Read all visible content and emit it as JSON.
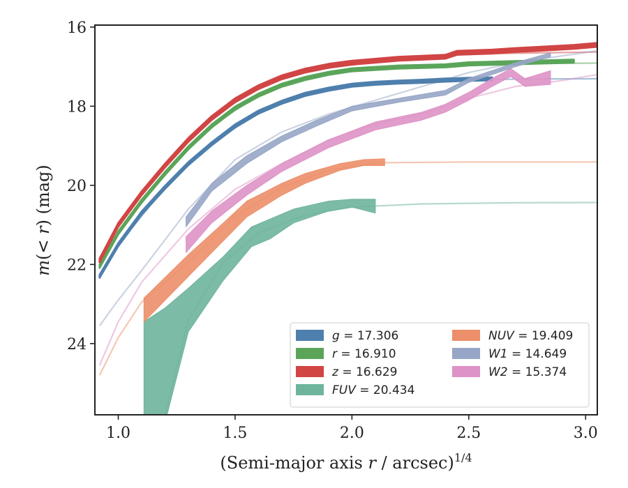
{
  "chart_data": {
    "type": "line",
    "xlabel": "(Semi-major axis r / arcsec)^1/4",
    "ylabel": "m(<r) (mag)",
    "xlim": [
      0.9,
      3.05
    ],
    "ylim": [
      25.8,
      15.95
    ],
    "y_inverted": true,
    "x_ticks": [
      "1.0",
      "1.5",
      "2.0",
      "2.5",
      "3.0"
    ],
    "y_ticks": [
      "16",
      "18",
      "20",
      "22",
      "24"
    ],
    "grid": false,
    "legend_position": "lower-right",
    "series": [
      {
        "name": "g = 17.306",
        "band": "g",
        "total_mag": 17.306,
        "color": "#4e7fad",
        "measured": [
          [
            0.92,
            22.3
          ],
          [
            1.0,
            21.5
          ],
          [
            1.1,
            20.7
          ],
          [
            1.2,
            20.05
          ],
          [
            1.3,
            19.45
          ],
          [
            1.4,
            18.95
          ],
          [
            1.5,
            18.5
          ],
          [
            1.6,
            18.15
          ],
          [
            1.7,
            17.9
          ],
          [
            1.8,
            17.7
          ],
          [
            1.9,
            17.57
          ],
          [
            2.0,
            17.47
          ],
          [
            2.1,
            17.42
          ],
          [
            2.2,
            17.39
          ],
          [
            2.3,
            17.37
          ],
          [
            2.4,
            17.34
          ],
          [
            2.5,
            17.32
          ],
          [
            2.6,
            17.31
          ]
        ],
        "model": [
          [
            0.92,
            22.3
          ],
          [
            1.0,
            21.5
          ],
          [
            1.2,
            20.05
          ],
          [
            1.4,
            18.95
          ],
          [
            1.6,
            18.15
          ],
          [
            1.8,
            17.7
          ],
          [
            2.0,
            17.47
          ],
          [
            2.2,
            17.39
          ],
          [
            2.5,
            17.33
          ],
          [
            2.8,
            17.31
          ],
          [
            3.05,
            17.306
          ]
        ],
        "band_width": 0.04
      },
      {
        "name": "r = 16.910",
        "band": "r",
        "total_mag": 16.91,
        "color": "#5aa55a",
        "measured": [
          [
            0.92,
            22.05
          ],
          [
            1.0,
            21.2
          ],
          [
            1.1,
            20.4
          ],
          [
            1.2,
            19.7
          ],
          [
            1.3,
            19.05
          ],
          [
            1.4,
            18.5
          ],
          [
            1.5,
            18.05
          ],
          [
            1.6,
            17.72
          ],
          [
            1.7,
            17.47
          ],
          [
            1.8,
            17.3
          ],
          [
            1.9,
            17.17
          ],
          [
            2.0,
            17.08
          ],
          [
            2.2,
            17.01
          ],
          [
            2.4,
            16.98
          ],
          [
            2.5,
            16.93
          ],
          [
            2.7,
            16.9
          ],
          [
            2.95,
            16.86
          ]
        ],
        "model": [
          [
            0.92,
            22.05
          ],
          [
            1.0,
            21.2
          ],
          [
            1.2,
            19.7
          ],
          [
            1.4,
            18.5
          ],
          [
            1.6,
            17.72
          ],
          [
            1.8,
            17.3
          ],
          [
            2.0,
            17.08
          ],
          [
            2.3,
            16.98
          ],
          [
            2.6,
            16.93
          ],
          [
            3.05,
            16.91
          ]
        ],
        "band_width": 0.04
      },
      {
        "name": "z = 16.629",
        "band": "z",
        "total_mag": 16.629,
        "color": "#d14545",
        "measured": [
          [
            0.92,
            21.9
          ],
          [
            1.0,
            21.0
          ],
          [
            1.1,
            20.2
          ],
          [
            1.2,
            19.5
          ],
          [
            1.3,
            18.85
          ],
          [
            1.4,
            18.3
          ],
          [
            1.5,
            17.85
          ],
          [
            1.6,
            17.52
          ],
          [
            1.7,
            17.27
          ],
          [
            1.8,
            17.1
          ],
          [
            1.9,
            16.98
          ],
          [
            2.0,
            16.9
          ],
          [
            2.2,
            16.8
          ],
          [
            2.4,
            16.75
          ],
          [
            2.45,
            16.65
          ],
          [
            2.6,
            16.62
          ],
          [
            2.7,
            16.58
          ],
          [
            2.8,
            16.55
          ],
          [
            2.95,
            16.5
          ],
          [
            3.05,
            16.45
          ]
        ],
        "model": [
          [
            0.92,
            21.9
          ],
          [
            1.0,
            21.0
          ],
          [
            1.2,
            19.5
          ],
          [
            1.4,
            18.3
          ],
          [
            1.6,
            17.52
          ],
          [
            1.8,
            17.1
          ],
          [
            2.0,
            16.9
          ],
          [
            2.3,
            16.74
          ],
          [
            2.6,
            16.67
          ],
          [
            3.05,
            16.63
          ]
        ],
        "band_width": 0.05
      },
      {
        "name": "FUV = 20.434",
        "band": "FUV",
        "total_mag": 20.434,
        "color": "#6eb49c",
        "measured_band": [
          [
            1.11,
            23.45,
            27.0
          ],
          [
            1.2,
            23.1,
            26.0
          ],
          [
            1.3,
            22.6,
            23.7
          ],
          [
            1.45,
            21.8,
            22.4
          ],
          [
            1.57,
            21.05,
            21.55
          ],
          [
            1.65,
            20.85,
            21.35
          ],
          [
            1.75,
            20.6,
            20.95
          ],
          [
            1.9,
            20.4,
            20.65
          ],
          [
            2.0,
            20.35,
            20.55
          ],
          [
            2.1,
            20.35,
            20.7
          ]
        ],
        "model": [
          [
            1.18,
            26.3
          ],
          [
            1.3,
            23.4
          ],
          [
            1.45,
            21.95
          ],
          [
            1.6,
            21.2
          ],
          [
            1.8,
            20.75
          ],
          [
            2.0,
            20.55
          ],
          [
            2.3,
            20.47
          ],
          [
            2.7,
            20.44
          ],
          [
            3.05,
            20.434
          ]
        ]
      },
      {
        "name": "NUV = 19.409",
        "band": "NUV",
        "total_mag": 19.409,
        "color": "#ec8f6a",
        "measured_band": [
          [
            1.11,
            22.85,
            23.45
          ],
          [
            1.3,
            21.75,
            22.3
          ],
          [
            1.45,
            20.95,
            21.4
          ],
          [
            1.55,
            20.4,
            20.8
          ],
          [
            1.7,
            19.95,
            20.25
          ],
          [
            1.8,
            19.7,
            19.95
          ],
          [
            1.95,
            19.45,
            19.62
          ],
          [
            2.05,
            19.35,
            19.5
          ],
          [
            2.14,
            19.33,
            19.5
          ]
        ],
        "model": [
          [
            0.92,
            24.8
          ],
          [
            1.0,
            23.85
          ],
          [
            1.1,
            22.95
          ],
          [
            1.3,
            21.95
          ],
          [
            1.5,
            20.8
          ],
          [
            1.7,
            20.05
          ],
          [
            1.9,
            19.62
          ],
          [
            2.1,
            19.43
          ],
          [
            2.5,
            19.41
          ],
          [
            3.05,
            19.409
          ]
        ]
      },
      {
        "name": "W1 = 14.649",
        "band": "W1",
        "total_mag": 14.649,
        "color": "#97a6c6",
        "measured_band": [
          [
            1.29,
            20.8,
            21.05
          ],
          [
            1.4,
            19.95,
            20.15
          ],
          [
            1.55,
            19.25,
            19.45
          ],
          [
            1.7,
            18.75,
            18.9
          ],
          [
            1.85,
            18.35,
            18.5
          ],
          [
            2.0,
            18.0,
            18.12
          ],
          [
            2.2,
            17.8,
            17.9
          ],
          [
            2.4,
            17.6,
            17.72
          ],
          [
            2.5,
            17.3,
            17.4
          ],
          [
            2.7,
            16.9,
            17.0
          ],
          [
            2.85,
            16.65,
            16.75
          ]
        ],
        "model": [
          [
            0.92,
            23.55
          ],
          [
            1.0,
            22.9
          ],
          [
            1.1,
            22.15
          ],
          [
            1.3,
            20.6
          ],
          [
            1.5,
            19.35
          ],
          [
            1.7,
            18.65
          ],
          [
            1.9,
            18.2
          ],
          [
            2.1,
            17.85
          ],
          [
            2.3,
            17.5
          ],
          [
            2.5,
            17.15
          ],
          [
            2.7,
            16.9
          ],
          [
            3.05,
            16.6
          ]
        ]
      },
      {
        "name": "W2 = 15.374",
        "band": "W2",
        "total_mag": 15.374,
        "color": "#de93c6",
        "measured_band": [
          [
            1.29,
            21.3,
            21.7
          ],
          [
            1.4,
            20.65,
            20.95
          ],
          [
            1.55,
            20.0,
            20.25
          ],
          [
            1.7,
            19.45,
            19.65
          ],
          [
            1.9,
            18.85,
            19.05
          ],
          [
            2.1,
            18.4,
            18.6
          ],
          [
            2.3,
            18.15,
            18.35
          ],
          [
            2.4,
            17.95,
            18.15
          ],
          [
            2.5,
            17.65,
            17.85
          ],
          [
            2.6,
            17.3,
            17.5
          ],
          [
            2.68,
            17.05,
            17.25
          ],
          [
            2.74,
            17.3,
            17.5
          ],
          [
            2.85,
            17.1,
            17.45
          ]
        ],
        "model": [
          [
            0.92,
            24.55
          ],
          [
            1.0,
            23.45
          ],
          [
            1.1,
            22.45
          ],
          [
            1.3,
            21.1
          ],
          [
            1.5,
            20.1
          ],
          [
            1.7,
            19.45
          ],
          [
            1.9,
            18.85
          ],
          [
            2.1,
            18.45
          ],
          [
            2.3,
            18.2
          ],
          [
            2.5,
            17.8
          ],
          [
            2.7,
            17.5
          ],
          [
            2.9,
            17.35
          ],
          [
            3.05,
            17.2
          ]
        ]
      }
    ],
    "legend_columns": [
      [
        "g = 17.306",
        "r = 16.910",
        "z = 16.629",
        "FUV = 20.434"
      ],
      [
        "NUV = 19.409",
        "W1 = 14.649",
        "W2 = 15.374"
      ]
    ]
  }
}
